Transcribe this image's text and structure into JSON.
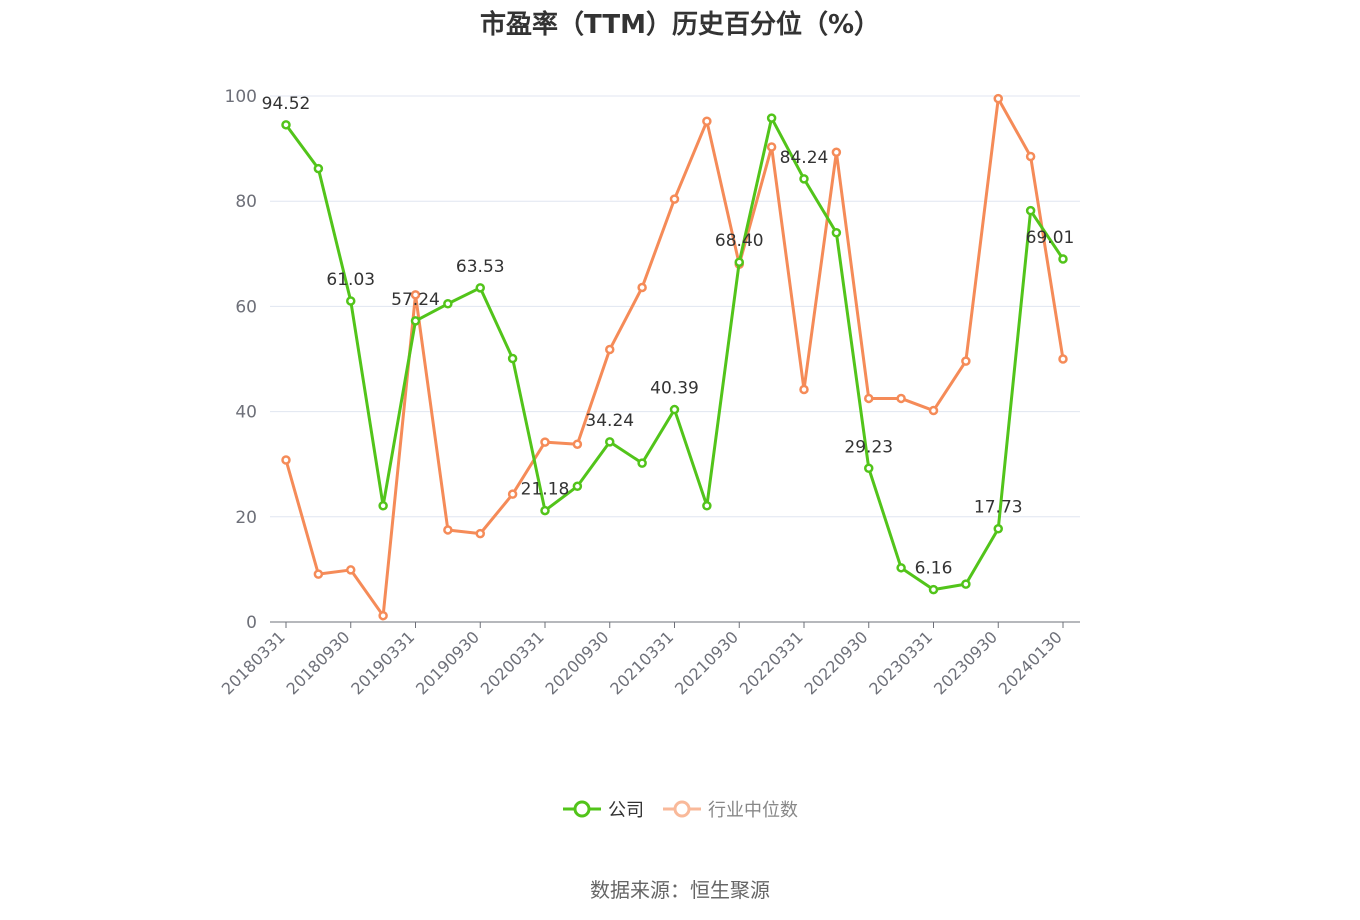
{
  "chart_data": {
    "type": "line",
    "title": "市盈率（TTM）历史百分位（%）",
    "source": "数据来源：恒生聚源",
    "ylim": [
      0,
      100
    ],
    "y_ticks": [
      "0",
      "20",
      "40",
      "60",
      "80",
      "100"
    ],
    "x": [
      "20180331",
      "20180630",
      "20180930",
      "20181231",
      "20190331",
      "20190630",
      "20190930",
      "20191231",
      "20200331",
      "20200630",
      "20200930",
      "20201231",
      "20210331",
      "20210630",
      "20210930",
      "20211231",
      "20220331",
      "20220630",
      "20220930",
      "20221231",
      "20230331",
      "20230630",
      "20230930",
      "20231231",
      "20240130"
    ],
    "x_tick_labels": [
      "20180331",
      "20180930",
      "20190331",
      "20190930",
      "20200331",
      "20200930",
      "20210331",
      "20210930",
      "20220331",
      "20220930",
      "20230331",
      "20230930",
      "20240130"
    ],
    "grid": true,
    "legend_position": "bottom-center",
    "series": [
      {
        "name": "公司",
        "color": "#52c41a",
        "values": [
          94.52,
          86.2,
          61.03,
          22.1,
          57.24,
          60.5,
          63.53,
          50.1,
          21.18,
          25.8,
          34.24,
          30.2,
          40.39,
          22.1,
          68.4,
          95.8,
          84.24,
          74.0,
          29.23,
          10.3,
          6.16,
          7.2,
          17.73,
          78.2,
          69.01
        ],
        "labels": {
          "0": "94.52",
          "2": "61.03",
          "4": "57.24",
          "6": "63.53",
          "8": "21.18",
          "10": "34.24",
          "12": "40.39",
          "14": "68.40",
          "16": "84.24",
          "18": "29.23",
          "20": "6.16",
          "22": "17.73",
          "24": "69.01"
        }
      },
      {
        "name": "行业中位数",
        "color": "#f58b58",
        "values": [
          30.8,
          9.1,
          9.9,
          1.2,
          62.2,
          17.5,
          16.8,
          24.3,
          34.2,
          33.8,
          51.8,
          63.6,
          80.4,
          95.2,
          68.0,
          90.3,
          44.2,
          89.3,
          42.5,
          42.5,
          40.2,
          49.6,
          99.5,
          88.5,
          50.0
        ]
      }
    ]
  }
}
